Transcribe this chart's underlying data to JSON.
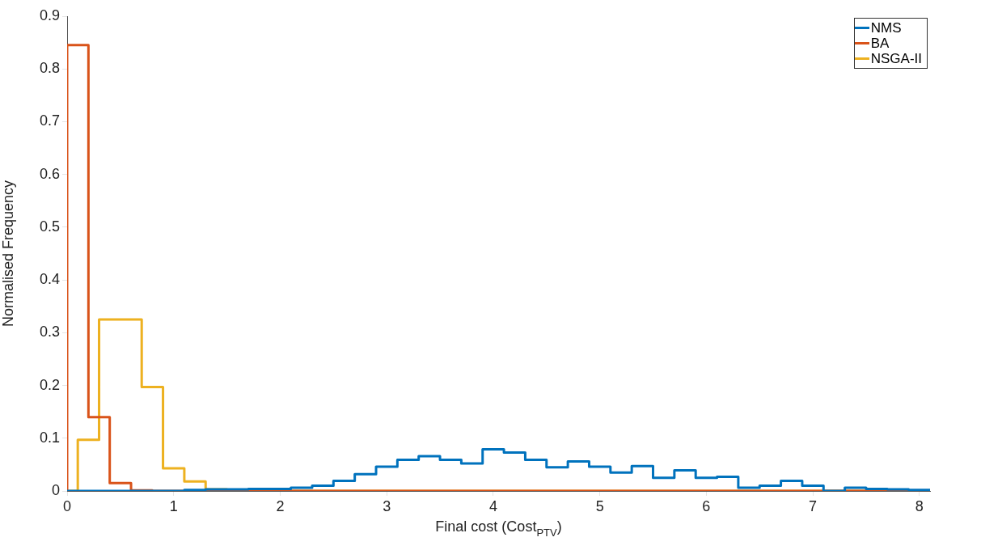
{
  "chart_data": {
    "type": "histogram",
    "xlabel": "Final cost (Cost$_{PTV}$)",
    "ylabel": "Normalised Frequency",
    "bins": [
      0,
      0.1,
      0.2,
      0.3,
      0.4,
      0.5,
      0.6,
      0.7,
      0.8,
      0.9,
      1,
      1.1,
      1.2,
      1.3,
      1.4,
      1.5,
      1.6,
      1.7,
      1.8,
      1.9,
      2,
      2.1,
      2.2,
      2.3,
      2.4,
      2.5,
      2.6,
      2.7,
      2.8,
      2.9,
      3,
      3.1,
      3.2,
      3.3,
      3.4,
      3.5,
      3.6,
      3.7,
      3.8,
      3.9,
      4,
      4.1,
      4.2,
      4.3,
      4.4,
      4.5,
      4.6,
      4.7,
      4.8,
      4.9,
      5,
      5.1,
      5.2,
      5.3,
      5.4,
      5.5,
      5.6,
      5.7,
      5.8,
      5.9,
      6,
      6.1,
      6.2,
      6.3,
      6.4,
      6.5,
      6.6,
      6.7,
      6.8,
      6.9,
      7,
      7.1,
      7.2,
      7.3,
      7.4,
      7.5,
      7.6,
      7.7,
      7.8,
      7.9,
      8,
      8.1
    ],
    "xlim": [
      0,
      8.1
    ],
    "xticks": [
      0,
      1,
      2,
      3,
      4,
      5,
      6,
      7,
      8
    ],
    "ylim": [
      0,
      0.9
    ],
    "yticks": [
      0,
      0.1,
      0.2,
      0.3,
      0.4,
      0.5,
      0.6,
      0.7,
      0.8,
      0.9
    ],
    "legend": "top right",
    "series": [
      {
        "name": "NMS",
        "color": "#0072bd",
        "values": [
          0,
          0,
          0,
          0,
          0,
          0,
          0,
          0,
          0,
          0,
          0,
          0.002,
          0.002,
          0.003,
          0.003,
          0.003,
          0.003,
          0.004,
          0.004,
          0.004,
          0.004,
          0.006,
          0.006,
          0.01,
          0.01,
          0.019,
          0.019,
          0.032,
          0.032,
          0.046,
          0.046,
          0.059,
          0.059,
          0.066,
          0.066,
          0.059,
          0.059,
          0.052,
          0.052,
          0.079,
          0.079,
          0.073,
          0.073,
          0.059,
          0.059,
          0.045,
          0.045,
          0.056,
          0.056,
          0.046,
          0.046,
          0.035,
          0.035,
          0.047,
          0.047,
          0.025,
          0.025,
          0.039,
          0.039,
          0.025,
          0.025,
          0.027,
          0.027,
          0.006,
          0.006,
          0.01,
          0.01,
          0.019,
          0.019,
          0.01,
          0.01,
          0,
          0,
          0.006,
          0.006,
          0.004,
          0.004,
          0.003,
          0.003,
          0.002,
          0.002
        ]
      },
      {
        "name": "BA",
        "color": "#d95319",
        "values": [
          0.845,
          0.845,
          0.14,
          0.14,
          0.015,
          0.015,
          0.001,
          0.001,
          0,
          0,
          0,
          0,
          0,
          0,
          0,
          0,
          0,
          0,
          0,
          0,
          0,
          0,
          0,
          0,
          0,
          0,
          0,
          0,
          0,
          0,
          0,
          0,
          0,
          0,
          0,
          0,
          0,
          0,
          0,
          0,
          0,
          0,
          0,
          0,
          0,
          0,
          0,
          0,
          0,
          0,
          0,
          0,
          0,
          0,
          0,
          0,
          0,
          0,
          0,
          0,
          0,
          0,
          0,
          0,
          0,
          0,
          0,
          0,
          0,
          0,
          0,
          0,
          0,
          0,
          0,
          0,
          0,
          0,
          0,
          0,
          0
        ]
      },
      {
        "name": "NSGA-II",
        "color": "#edb120",
        "values": [
          0,
          0.097,
          0.097,
          0.325,
          0.325,
          0.325,
          0.325,
          0.197,
          0.197,
          0.043,
          0.043,
          0.018,
          0.018,
          0.003,
          0.003,
          0,
          0,
          0,
          0,
          0,
          0,
          0,
          0,
          0,
          0,
          0,
          0,
          0,
          0,
          0,
          0,
          0,
          0,
          0,
          0,
          0,
          0,
          0,
          0,
          0,
          0,
          0,
          0,
          0,
          0,
          0,
          0,
          0,
          0,
          0,
          0,
          0,
          0,
          0,
          0,
          0,
          0,
          0,
          0,
          0,
          0,
          0,
          0,
          0,
          0,
          0,
          0,
          0,
          0,
          0,
          0,
          0,
          0,
          0,
          0,
          0,
          0,
          0,
          0,
          0,
          0
        ]
      }
    ]
  }
}
